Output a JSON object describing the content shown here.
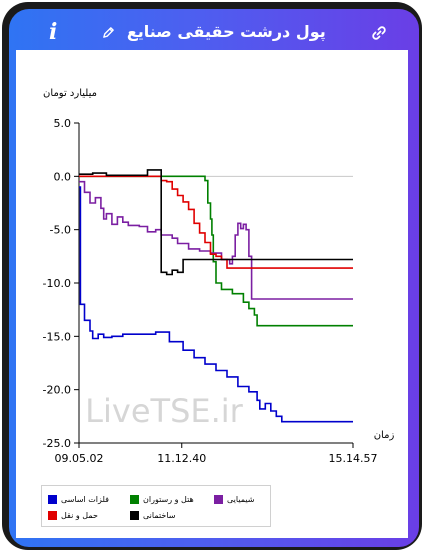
{
  "header": {
    "title": "پول درشت حقیقی صنایع",
    "info_label": "i"
  },
  "colors": {
    "header_left": "#2f74f3",
    "header_right": "#6a3ee6",
    "zero_line": "#c8c8c8"
  },
  "watermark": "LiveTSE.ir",
  "chart_data": {
    "type": "line",
    "ylabel": "میلیارد تومان",
    "xlabel": "زمان",
    "ylim": [
      -25,
      5
    ],
    "yticks": [
      5.0,
      0.0,
      -5.0,
      -10.0,
      -15.0,
      -20.0,
      -25.0
    ],
    "ytick_labels": [
      "5.0",
      "0.0",
      "-5.0",
      "-10.0",
      "-15.0",
      "-20.0",
      "-25.0"
    ],
    "xlim": [
      0,
      100
    ],
    "xticks": [
      0,
      37.5,
      100
    ],
    "xtick_labels": [
      "09.05.02",
      "11.12.40",
      "15.14.57"
    ],
    "grid": false,
    "legend_position": "bottom",
    "series": [
      {
        "name": "فلزات اساسی",
        "color": "#0000cc",
        "points": [
          [
            0,
            -1
          ],
          [
            0.5,
            -12
          ],
          [
            2,
            -13.5
          ],
          [
            4,
            -14.5
          ],
          [
            5,
            -15.2
          ],
          [
            7,
            -14.8
          ],
          [
            9,
            -15.1
          ],
          [
            12,
            -15
          ],
          [
            16,
            -14.8
          ],
          [
            28,
            -14.6
          ],
          [
            33,
            -15.5
          ],
          [
            38,
            -16.3
          ],
          [
            42,
            -17
          ],
          [
            46,
            -17.6
          ],
          [
            50,
            -18.2
          ],
          [
            54,
            -18.8
          ],
          [
            58,
            -19.7
          ],
          [
            62,
            -20.2
          ],
          [
            65,
            -21
          ],
          [
            66,
            -21.8
          ],
          [
            68,
            -21.3
          ],
          [
            70,
            -22
          ],
          [
            72,
            -22.5
          ],
          [
            74,
            -23
          ],
          [
            100,
            -23
          ]
        ]
      },
      {
        "name": "هتل و رستوران",
        "color": "#008000",
        "points": [
          [
            0,
            0
          ],
          [
            45,
            0
          ],
          [
            46,
            -0.4
          ],
          [
            47,
            -2.5
          ],
          [
            48,
            -4
          ],
          [
            48.5,
            -5.5
          ],
          [
            49,
            -8
          ],
          [
            50,
            -10
          ],
          [
            52,
            -10.6
          ],
          [
            56,
            -11
          ],
          [
            60,
            -11.8
          ],
          [
            62,
            -12.4
          ],
          [
            64,
            -13
          ],
          [
            65,
            -14
          ],
          [
            100,
            -14
          ]
        ]
      },
      {
        "name": "شیمیایی",
        "color": "#7b1fa2",
        "points": [
          [
            0,
            -0.5
          ],
          [
            2,
            -1.5
          ],
          [
            4,
            -2.5
          ],
          [
            6,
            -2
          ],
          [
            8,
            -3
          ],
          [
            9,
            -4
          ],
          [
            10,
            -3.5
          ],
          [
            12,
            -4.5
          ],
          [
            14,
            -3.8
          ],
          [
            16,
            -4.3
          ],
          [
            18,
            -4.6
          ],
          [
            22,
            -4.7
          ],
          [
            25,
            -5.2
          ],
          [
            28,
            -5
          ],
          [
            30,
            -5.5
          ],
          [
            34,
            -5.8
          ],
          [
            36,
            -6.3
          ],
          [
            40,
            -6.8
          ],
          [
            44,
            -7
          ],
          [
            48,
            -7.2
          ],
          [
            52,
            -7.8
          ],
          [
            55,
            -8.2
          ],
          [
            56,
            -7.5
          ],
          [
            57,
            -5.5
          ],
          [
            58,
            -4.4
          ],
          [
            59,
            -4.9
          ],
          [
            60,
            -4.5
          ],
          [
            61,
            -5
          ],
          [
            62,
            -7.5
          ],
          [
            63,
            -11.5
          ],
          [
            100,
            -11.5
          ]
        ]
      },
      {
        "name": "حمل و نقل",
        "color": "#e00000",
        "points": [
          [
            0,
            0
          ],
          [
            28,
            0
          ],
          [
            30,
            -0.4
          ],
          [
            32,
            -0.5
          ],
          [
            34,
            -1.2
          ],
          [
            36,
            -1.8
          ],
          [
            38,
            -2.4
          ],
          [
            40,
            -3.1
          ],
          [
            42,
            -4.4
          ],
          [
            44,
            -5.3
          ],
          [
            46,
            -6.2
          ],
          [
            48,
            -7.3
          ],
          [
            50,
            -7.5
          ],
          [
            52,
            -7.8
          ],
          [
            54,
            -8.6
          ],
          [
            100,
            -8.6
          ]
        ]
      },
      {
        "name": "ساختمانی",
        "color": "#000000",
        "points": [
          [
            0,
            0.2
          ],
          [
            5,
            0.3
          ],
          [
            10,
            0.1
          ],
          [
            20,
            0.1
          ],
          [
            25,
            0.6
          ],
          [
            28,
            0.6
          ],
          [
            30,
            -9
          ],
          [
            32,
            -9.2
          ],
          [
            34,
            -8.8
          ],
          [
            36,
            -9
          ],
          [
            38,
            -7.8
          ],
          [
            100,
            -7.8
          ]
        ]
      }
    ]
  }
}
